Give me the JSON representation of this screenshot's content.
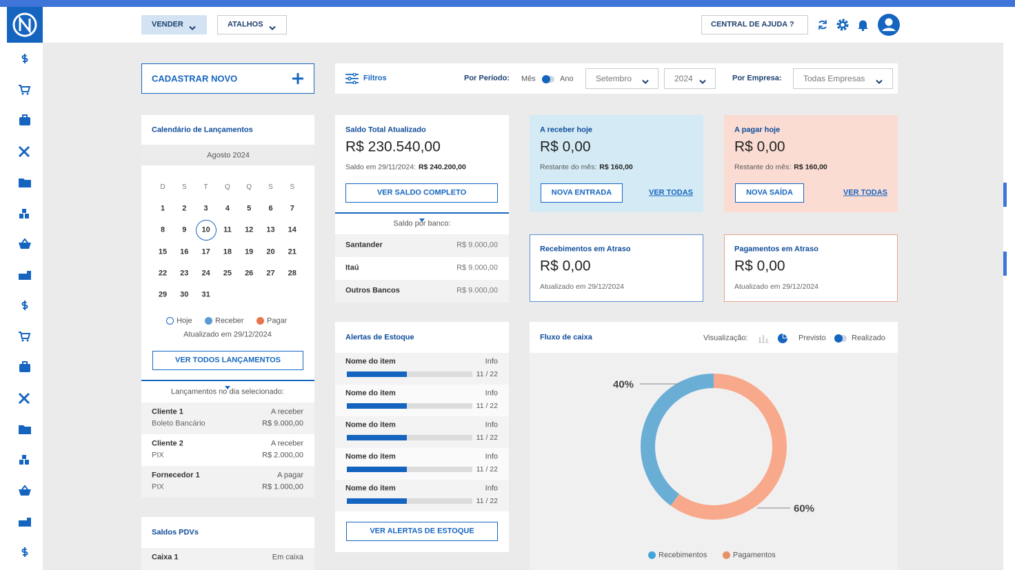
{
  "header": {
    "nav": [
      "VENDER",
      "ATALHOS"
    ],
    "help": "CENTRAL DE AJUDA ?"
  },
  "actions": {
    "new": "CADASTRAR NOVO"
  },
  "filters": {
    "label": "Filtros",
    "period_label": "Por Período:",
    "month_option": "Mês",
    "year_option": "Ano",
    "month": "Setembro",
    "year": "2024",
    "company_label": "Por Empresa:",
    "company": "Todas Empresas"
  },
  "calendar": {
    "title": "Calendário de Lançamentos",
    "month": "Agosto 2024",
    "weekdays": [
      "D",
      "S",
      "T",
      "Q",
      "Q",
      "S",
      "S"
    ],
    "days": [
      1,
      2,
      3,
      4,
      5,
      6,
      7,
      8,
      9,
      10,
      11,
      12,
      13,
      14,
      15,
      16,
      17,
      18,
      19,
      20,
      21,
      22,
      23,
      24,
      25,
      26,
      27,
      28,
      29,
      30,
      31
    ],
    "selected_day": 10,
    "legend": [
      "Hoje",
      "Receber",
      "Pagar"
    ],
    "updated": "Atualizado em 29/12/2024",
    "button": "VER TODOS LANÇAMENTOS",
    "entries_title": "Lançamentos no dia selecionado:",
    "entries": [
      {
        "name": "Cliente 1",
        "type": "A receber",
        "method": "Boleto Bancário",
        "amount": "R$ 9.000,00"
      },
      {
        "name": "Cliente 2",
        "type": "A receber",
        "method": "PIX",
        "amount": "R$ 2.000,00"
      },
      {
        "name": "Fornecedor 1",
        "type": "A pagar",
        "method": "PIX",
        "amount": "R$ 1.000,00"
      }
    ]
  },
  "pdv": {
    "title": "Saldos PDVs",
    "rows": [
      {
        "name": "Caixa 1",
        "status": "Em caixa"
      }
    ]
  },
  "balance": {
    "title": "Saldo Total Atualizado",
    "total": "R$ 230.540,00",
    "note_label": "Saldo em 29/11/2024:",
    "note_value": "R$ 240.200,00",
    "button": "VER SALDO COMPLETO",
    "banks_title": "Saldo por banco:",
    "banks": [
      {
        "name": "Santander",
        "amount": "R$ 9.000,00"
      },
      {
        "name": "Itaú",
        "amount": "R$ 9.000,00"
      },
      {
        "name": "Outros Bancos",
        "amount": "R$ 9.000,00"
      }
    ]
  },
  "receivable": {
    "title": "A receber hoje",
    "total": "R$ 0,00",
    "remaining_label": "Restante do mês:",
    "remaining_value": "R$ 160,00",
    "button": "NOVA ENTRADA",
    "link": "VER TODAS"
  },
  "payable": {
    "title": "A pagar hoje",
    "total": "R$ 0,00",
    "remaining_label": "Restante do mês:",
    "remaining_value": "R$ 160,00",
    "button": "NOVA SAÍDA",
    "link": "VER TODAS"
  },
  "overdue_in": {
    "title": "Recebimentos em Atraso",
    "total": "R$ 0,00",
    "updated": "Atualizado em 29/12/2024"
  },
  "overdue_out": {
    "title": "Pagamentos em Atraso",
    "total": "R$ 0,00",
    "updated": "Atualizado em 29/12/2024"
  },
  "stock": {
    "title": "Alertas de Estoque",
    "items": [
      {
        "name": "Nome do item",
        "info": "Info",
        "progress": "11 / 22"
      },
      {
        "name": "Nome do item",
        "info": "Info",
        "progress": "11 / 22"
      },
      {
        "name": "Nome do item",
        "info": "Info",
        "progress": "11 / 22"
      },
      {
        "name": "Nome do item",
        "info": "Info",
        "progress": "11 / 22"
      },
      {
        "name": "Nome do item",
        "info": "Info",
        "progress": "11 / 22"
      }
    ],
    "button": "VER ALERTAS DE ESTOQUE"
  },
  "cashflow": {
    "title": "Fluxo de caixa",
    "view_label": "Visualização:",
    "forecast": "Previsto",
    "actual": "Realizado",
    "chart": {
      "type": "pie",
      "categories": [
        "Recebimentos",
        "Pagamentos"
      ],
      "values": [
        40,
        60
      ],
      "value_labels": [
        "40%",
        "60%"
      ],
      "colors": [
        "#6aaed6",
        "#f9a98b"
      ]
    }
  }
}
